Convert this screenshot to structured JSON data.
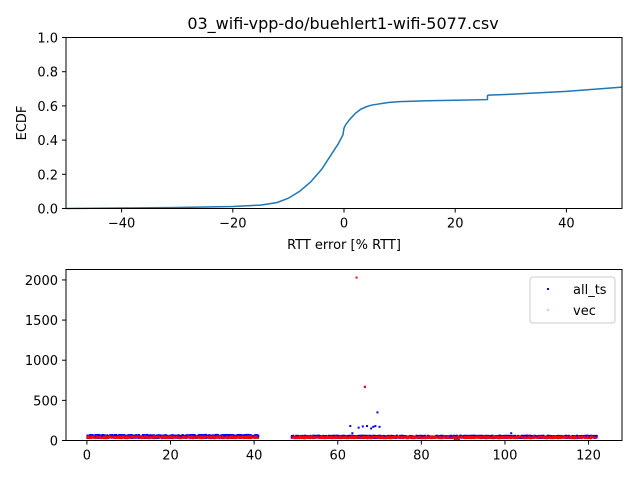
{
  "chart_data": [
    {
      "type": "line",
      "title": "03_wifi-vpp-do/buehlert1-wifi-5077.csv",
      "xlabel": "RTT error [% RTT]",
      "ylabel": "ECDF",
      "xlim": [
        -50,
        50
      ],
      "ylim": [
        0,
        1.0
      ],
      "xticks": [
        -40,
        -20,
        0,
        20,
        40
      ],
      "xtick_labels": [
        "−40",
        "−20",
        "0",
        "20",
        "40"
      ],
      "yticks": [
        0,
        0.2,
        0.4,
        0.6,
        0.8,
        1.0
      ],
      "ytick_labels": [
        "0.0",
        "0.2",
        "0.4",
        "0.6",
        "0.8",
        "1.0"
      ],
      "grid": false,
      "color": "#1f77b4",
      "series": [
        {
          "x": [
            -50,
            -40,
            -30,
            -20,
            -15,
            -12,
            -10,
            -8,
            -6,
            -4,
            -2,
            -1,
            -0.2,
            0,
            0.3,
            1,
            2,
            3,
            4,
            5,
            6,
            8,
            10,
            15,
            20,
            25.8,
            25.8,
            26,
            30,
            40,
            50
          ],
          "y": [
            0.0,
            0.003,
            0.006,
            0.012,
            0.02,
            0.035,
            0.06,
            0.1,
            0.155,
            0.23,
            0.33,
            0.38,
            0.43,
            0.47,
            0.49,
            0.52,
            0.555,
            0.58,
            0.595,
            0.605,
            0.61,
            0.62,
            0.625,
            0.63,
            0.633,
            0.637,
            0.66,
            0.663,
            0.668,
            0.685,
            0.71
          ]
        }
      ]
    },
    {
      "type": "scatter",
      "xlim": [
        -5,
        128
      ],
      "ylim": [
        0,
        2130
      ],
      "xticks": [
        0,
        20,
        40,
        60,
        80,
        100,
        120
      ],
      "xtick_labels": [
        "0",
        "20",
        "40",
        "60",
        "80",
        "100",
        "120"
      ],
      "yticks": [
        0,
        500,
        1000,
        1500,
        2000
      ],
      "ytick_labels": [
        "0",
        "500",
        "1000",
        "1500",
        "2000"
      ],
      "grid": false,
      "legend_position": "top-right",
      "series": [
        {
          "name": "all_ts",
          "color": "#0000ff",
          "segments": [
            [
              0,
              41,
              30,
              70
            ],
            [
              49,
              122,
              30,
              60
            ]
          ],
          "outliers": [
            [
              63,
              180
            ],
            [
              63.5,
              90
            ],
            [
              65,
              160
            ],
            [
              66,
              175
            ],
            [
              66.5,
              670
            ],
            [
              67,
              180
            ],
            [
              68,
              150
            ],
            [
              68.5,
              170
            ],
            [
              69,
              180
            ],
            [
              69.5,
              350
            ],
            [
              70,
              170
            ],
            [
              88,
              20
            ],
            [
              101.5,
              90
            ],
            [
              25,
              60
            ],
            [
              119.5,
              60
            ]
          ]
        },
        {
          "name": "vec",
          "color": "#ff0000",
          "segments": [
            [
              0,
              41,
              25,
              55
            ],
            [
              49,
              122,
              25,
              50
            ]
          ],
          "outliers": [
            [
              64.5,
              2030
            ],
            [
              66.5,
              665
            ],
            [
              88.5,
              10
            ],
            [
              89,
              15
            ]
          ]
        }
      ]
    }
  ]
}
